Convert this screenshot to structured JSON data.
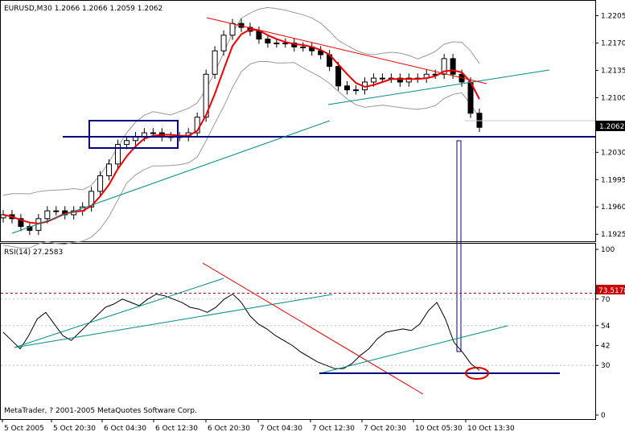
{
  "chart_data": [
    {
      "type": "line",
      "title": "EURUSD,M30  1.2066 1.2066 1.2059 1.2062",
      "y_ticks": [
        "1.2205",
        "1.2170",
        "1.2135",
        "1.2100",
        "1.2062",
        "1.2030",
        "1.1995",
        "1.1960",
        "1.1925"
      ],
      "price_label": "1.2062",
      "ylim": [
        1.1918,
        1.2222
      ],
      "overlays": [
        "candlesticks",
        "bollinger-bands",
        "red-moving-average",
        "trendlines",
        "consolidation-box"
      ],
      "series": [
        {
          "values": [
            1.195,
            1.1945,
            1.1935,
            1.193,
            1.1945,
            1.1955,
            1.1955,
            1.195,
            1.1955,
            1.196,
            1.198,
            1.2,
            1.2015,
            1.204,
            1.2045,
            1.205,
            1.2055,
            1.2055,
            1.205,
            1.205,
            1.205,
            1.2055,
            1.2075,
            1.213,
            1.216,
            1.218,
            1.2195,
            1.219,
            1.2185,
            1.2175,
            1.217,
            1.217,
            1.217,
            1.2165,
            1.2165,
            1.216,
            1.2155,
            1.214,
            1.2115,
            1.211,
            1.211,
            1.212,
            1.2125,
            1.2125,
            1.2125,
            1.212,
            1.2125,
            1.2125,
            1.213,
            1.213,
            1.215,
            1.213,
            1.212,
            1.208,
            1.2062
          ]
        }
      ]
    },
    {
      "type": "line",
      "title": "RSI(14) 27.2583",
      "y_ticks": [
        "100",
        "70",
        "54",
        "42",
        "30",
        "0"
      ],
      "level_label": "73.5178",
      "ylim": [
        0,
        100
      ],
      "overlays": [
        "trendlines",
        "circle-marker"
      ],
      "series": [
        {
          "values": [
            50,
            45,
            40,
            48,
            58,
            62,
            55,
            48,
            45,
            50,
            55,
            60,
            65,
            67,
            70,
            68,
            66,
            70,
            73,
            72,
            70,
            68,
            65,
            64,
            62,
            65,
            70,
            73,
            68,
            60,
            55,
            52,
            48,
            45,
            42,
            38,
            35,
            32,
            30,
            28,
            28,
            31,
            36,
            40,
            46,
            50,
            51,
            52,
            51,
            55,
            63,
            68,
            58,
            44,
            38,
            31,
            27
          ]
        }
      ]
    }
  ],
  "x_labels": [
    "5 Oct 2005",
    "5 Oct 20:30",
    "6 Oct 04:30",
    "6 Oct 12:30",
    "6 Oct 20:30",
    "7 Oct 04:30",
    "7 Oct 12:30",
    "7 Oct 20:30",
    "10 Oct 05:30",
    "10 Oct 13:30"
  ],
  "copyright": "MetaTrader, ? 2001-2005 MetaQuotes Software Corp.",
  "colors": {
    "price": "#000000",
    "ma": "#ee0000",
    "bands": "#9a9a9a",
    "trend": "#008b8b",
    "support": "#000080",
    "level": "#cc0000",
    "marker": "#e00000"
  }
}
